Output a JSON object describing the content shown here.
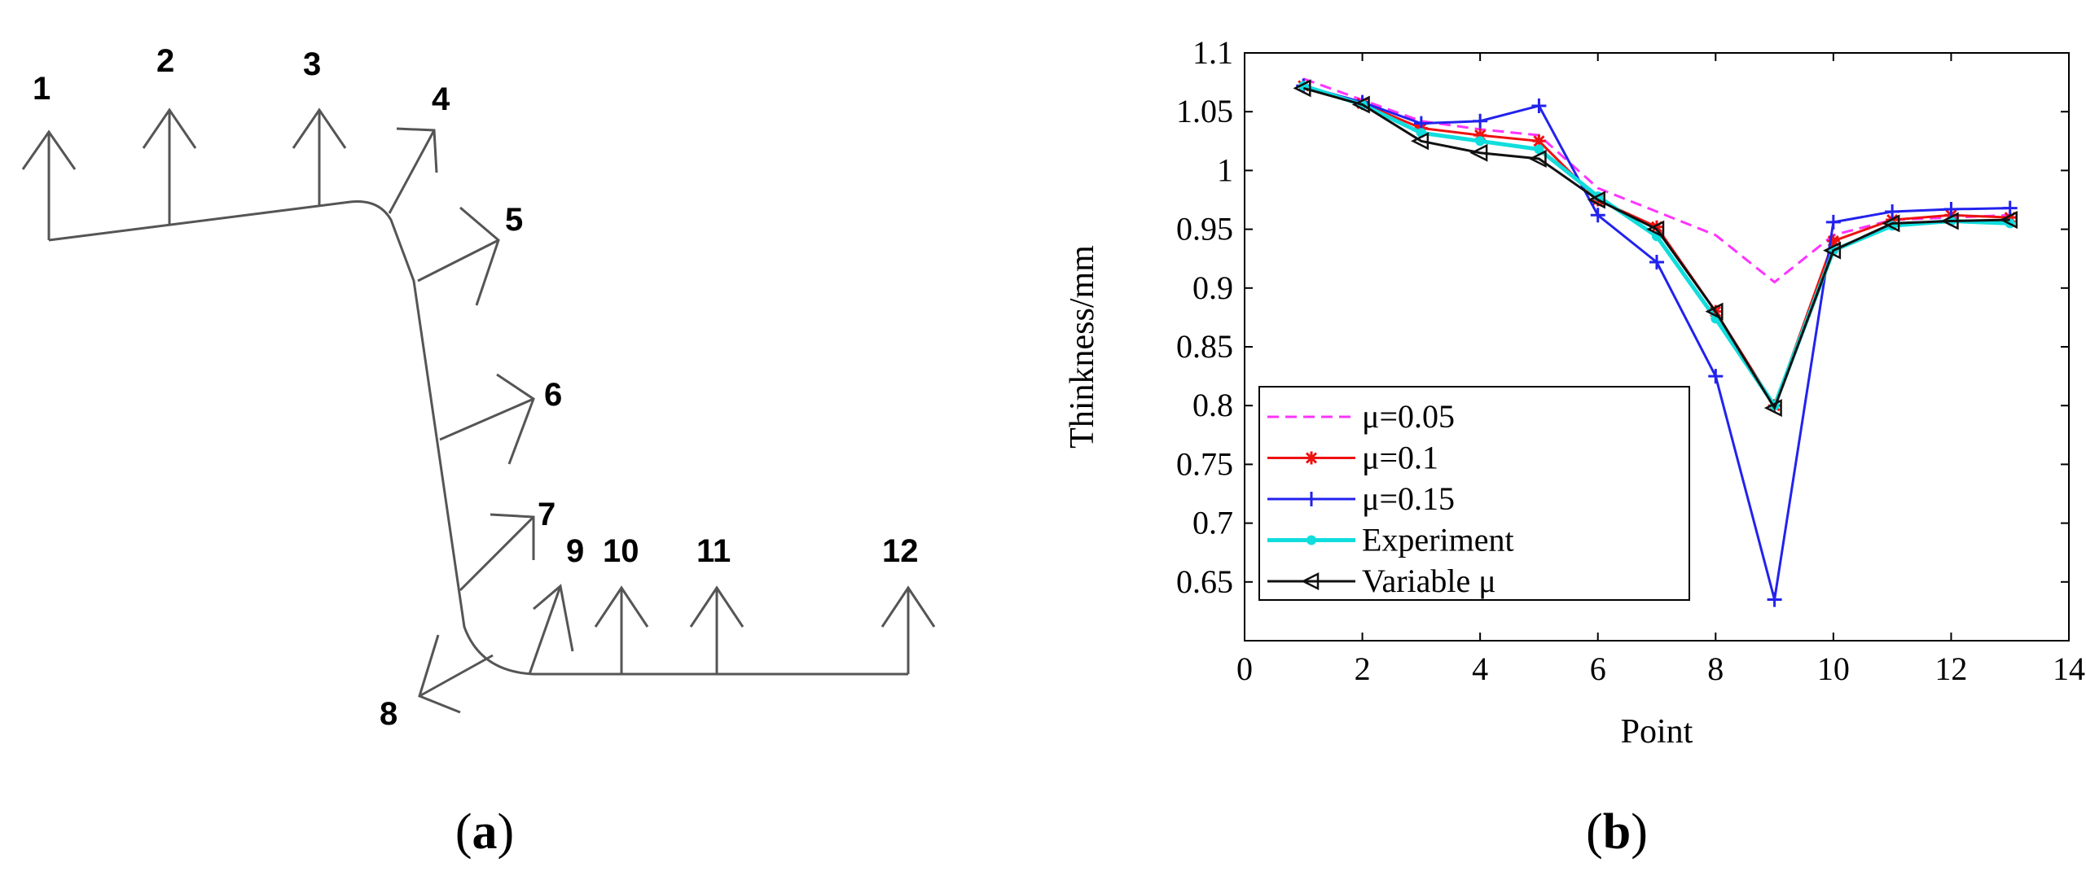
{
  "panel_a": {
    "point_labels": [
      "1",
      "2",
      "3",
      "4",
      "5",
      "6",
      "7",
      "8",
      "9",
      "10",
      "11",
      "12"
    ],
    "caption": {
      "open": "(",
      "letter": "a",
      "close": ")"
    }
  },
  "panel_b": {
    "caption": {
      "open": "(",
      "letter": "b",
      "close": ")"
    }
  },
  "chart_data": {
    "type": "line",
    "title": "",
    "xlabel": "Point",
    "ylabel": "Thinkness/mm",
    "xlim": [
      0,
      14
    ],
    "ylim": [
      0.6,
      1.1
    ],
    "x_ticks": [
      "0",
      "2",
      "4",
      "6",
      "8",
      "10",
      "12",
      "14"
    ],
    "y_ticks": [
      "0.65",
      "0.7",
      "0.75",
      "0.8",
      "0.85",
      "0.9",
      "0.95",
      "1",
      "1.05",
      "1.1"
    ],
    "x": [
      1,
      2,
      3,
      4,
      5,
      6,
      7,
      8,
      9,
      10,
      11,
      12,
      13
    ],
    "legend_position": "lower-left",
    "series": [
      {
        "name": "μ=0.05",
        "color": "#ff33ff",
        "dash": "dashed",
        "marker": "none",
        "values": [
          1.078,
          1.06,
          1.042,
          1.035,
          1.03,
          0.985,
          0.965,
          0.945,
          0.905,
          0.945,
          0.958,
          0.96,
          0.962
        ]
      },
      {
        "name": "μ=0.1",
        "color": "#ee1111",
        "dash": "solid",
        "marker": "star",
        "values": [
          1.072,
          1.057,
          1.036,
          1.03,
          1.025,
          0.975,
          0.952,
          0.88,
          0.8,
          0.94,
          0.958,
          0.962,
          0.96
        ]
      },
      {
        "name": "μ=0.15",
        "color": "#2222ee",
        "dash": "solid",
        "marker": "plus",
        "values": [
          1.072,
          1.058,
          1.04,
          1.042,
          1.055,
          0.962,
          0.922,
          0.825,
          0.635,
          0.956,
          0.965,
          0.967,
          0.968
        ]
      },
      {
        "name": "Experiment",
        "color": "#11dddd",
        "dash": "solid",
        "marker": "dot",
        "values": [
          1.072,
          1.056,
          1.032,
          1.025,
          1.018,
          0.978,
          0.944,
          0.874,
          0.8,
          0.932,
          0.953,
          0.957,
          0.955
        ]
      },
      {
        "name": "Variable μ",
        "color": "#111111",
        "dash": "solid",
        "marker": "triangle-left",
        "values": [
          1.07,
          1.056,
          1.025,
          1.015,
          1.01,
          0.975,
          0.95,
          0.88,
          0.798,
          0.932,
          0.955,
          0.957,
          0.958
        ]
      }
    ]
  }
}
